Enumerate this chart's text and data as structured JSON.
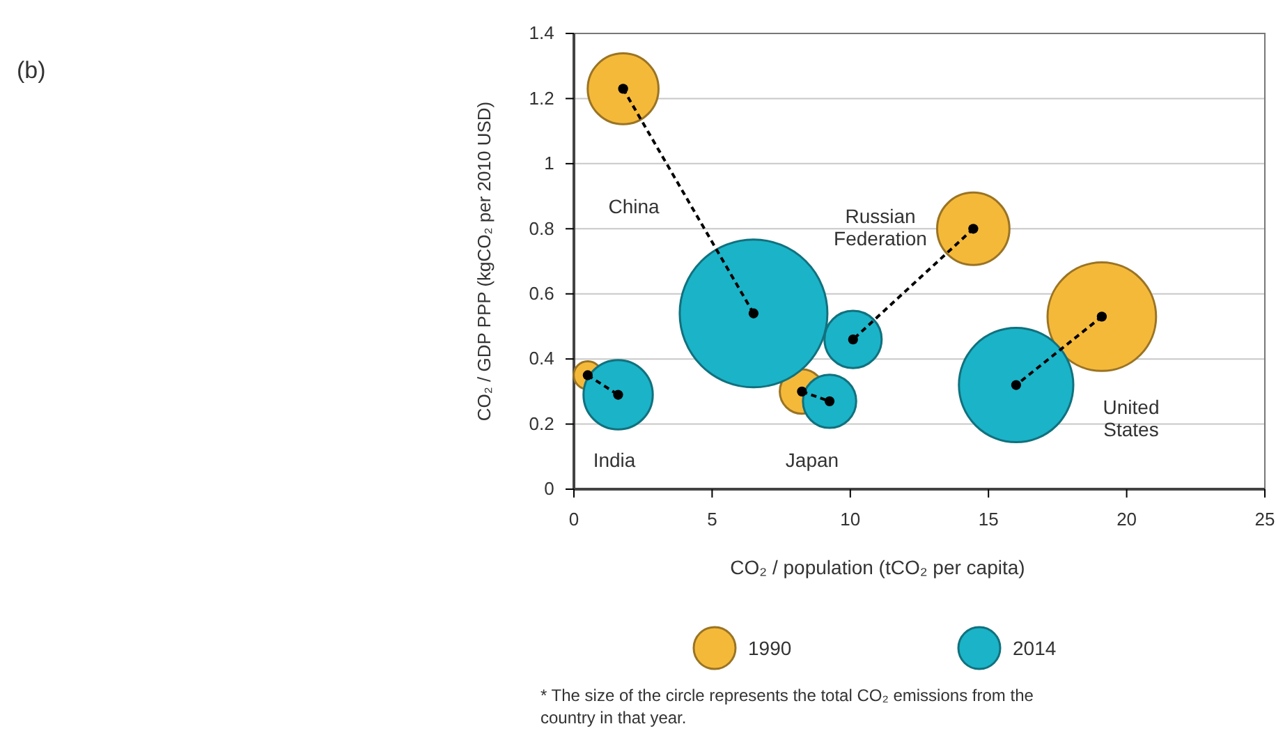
{
  "chart_data": {
    "type": "bubble",
    "title": "(b)",
    "xlabel": "CO₂ / population (tCO₂ per capita)",
    "ylabel": "CO₂ / GDP PPP (kgCO₂ per 2010 USD)",
    "xlim": [
      0,
      25
    ],
    "xticks": [
      0,
      5,
      10,
      15,
      20,
      25
    ],
    "ylim": [
      0,
      1.4
    ],
    "yticks": [
      0,
      0.2,
      0.4,
      0.6,
      0.8,
      1,
      1.2,
      1.4
    ],
    "grid": "y",
    "legend": "bottom",
    "series": [
      {
        "name": "1990",
        "color": "#f5b93a",
        "x": [
          1.78,
          0.5,
          8.25,
          14.45,
          19.1
        ],
        "values": [
          1.23,
          0.35,
          0.3,
          0.8,
          0.53
        ],
        "sizes": [
          0.23,
          0.036,
          0.09,
          0.24,
          0.54
        ]
      },
      {
        "name": "2014",
        "color": "#1bb3c8",
        "x": [
          6.5,
          1.6,
          9.25,
          10.1,
          16.0
        ],
        "values": [
          0.54,
          0.29,
          0.27,
          0.46,
          0.32
        ],
        "sizes": [
          1,
          0.22,
          0.13,
          0.15,
          0.6
        ]
      },
      {
        "type": "line",
        "color": "#000000",
        "line_style": "dashed",
        "marker": "circle",
        "x": [
          1.78,
          6.5
        ],
        "values": [
          1.23,
          0.54
        ]
      },
      {
        "type": "line",
        "color": "#000000",
        "line_style": "dashed",
        "marker": "circle",
        "x": [
          0.5,
          1.6
        ],
        "values": [
          0.35,
          0.29
        ]
      },
      {
        "type": "line",
        "color": "#000000",
        "line_style": "dashed",
        "marker": "circle",
        "x": [
          8.25,
          9.25
        ],
        "values": [
          0.3,
          0.27
        ]
      },
      {
        "type": "line",
        "color": "#000000",
        "line_style": "dashed",
        "marker": "circle",
        "x": [
          14.45,
          10.1
        ],
        "values": [
          0.8,
          0.46
        ]
      },
      {
        "type": "line",
        "color": "#000000",
        "line_style": "dashed",
        "marker": "circle",
        "x": [
          19.1,
          16.0
        ],
        "values": [
          0.53,
          0.32
        ]
      }
    ],
    "annotations": [
      "China",
      "India",
      "Japan",
      "Russian\nFederation",
      "United\nStates",
      "* The size of the circle represents the total CO₂ emissions from the\ncountry in that year."
    ]
  }
}
